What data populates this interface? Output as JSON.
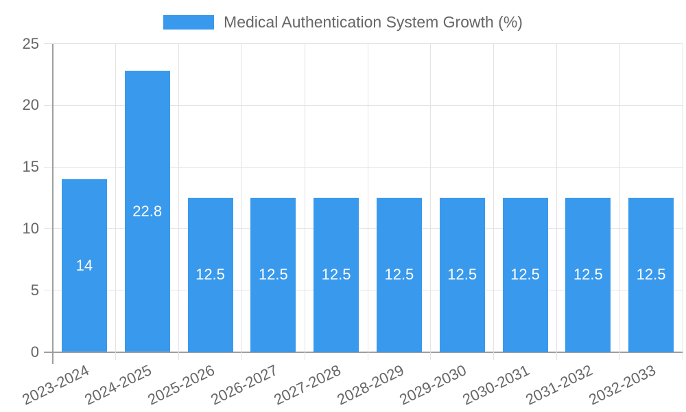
{
  "legend": {
    "label": "Medical Authentication System Growth (%)"
  },
  "colors": {
    "bar": "#3999EC",
    "grid": "#E3E3E3",
    "axis": "#9E9E9E",
    "tick_text": "#666666",
    "legend_text": "#666666",
    "value_label": "#FFFFFF",
    "background": "#FFFFFF"
  },
  "chart_data": {
    "type": "bar",
    "title": "Medical Authentication System Growth (%)",
    "categories": [
      "2023-2024",
      "2024-2025",
      "2025-2026",
      "2026-2027",
      "2027-2028",
      "2028-2029",
      "2029-2030",
      "2030-2031",
      "2031-2032",
      "2032-2033"
    ],
    "values": [
      14,
      22.8,
      12.5,
      12.5,
      12.5,
      12.5,
      12.5,
      12.5,
      12.5,
      12.5
    ],
    "xlabel": "",
    "ylabel": "",
    "ylim": [
      0,
      25
    ],
    "yticks": [
      0,
      5,
      10,
      15,
      20,
      25
    ],
    "grid": true,
    "legend_position": "top",
    "bar_label_position": "center",
    "x_tick_rotation_deg": -26
  }
}
